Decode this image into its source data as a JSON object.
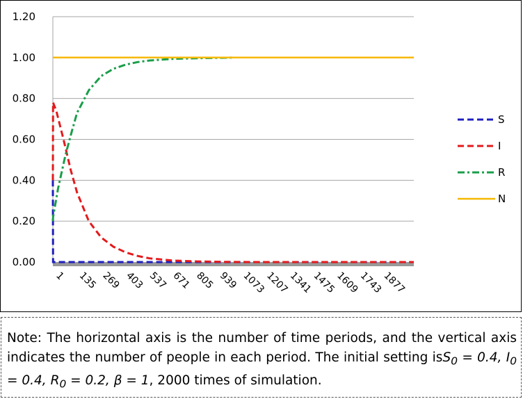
{
  "chart_data": {
    "type": "line",
    "title": "",
    "xlabel": "",
    "ylabel": "",
    "ylim": [
      0,
      1.2
    ],
    "y_ticks": [
      "0.00",
      "0.20",
      "0.40",
      "0.60",
      "0.80",
      "1.00",
      "1.20"
    ],
    "x_ticks": [
      "1",
      "135",
      "269",
      "403",
      "537",
      "671",
      "805",
      "939",
      "1073",
      "1207",
      "1341",
      "1475",
      "1609",
      "1743",
      "1877"
    ],
    "xlim": [
      1,
      2000
    ],
    "grid": "horizontal",
    "legend_position": "right",
    "series": [
      {
        "name": "S",
        "color": "#1f1fbf",
        "dash": "dashed",
        "points": [
          [
            1,
            0.4
          ],
          [
            2,
            0.0
          ],
          [
            2000,
            0.0
          ]
        ]
      },
      {
        "name": "I",
        "color": "#e31a1c",
        "dash": "dashed",
        "points": [
          [
            1,
            0.4
          ],
          [
            2,
            0.78
          ],
          [
            20,
            0.74
          ],
          [
            60,
            0.6
          ],
          [
            100,
            0.45
          ],
          [
            135,
            0.34
          ],
          [
            200,
            0.2
          ],
          [
            269,
            0.12
          ],
          [
            336,
            0.075
          ],
          [
            403,
            0.048
          ],
          [
            470,
            0.03
          ],
          [
            537,
            0.018
          ],
          [
            671,
            0.007
          ],
          [
            805,
            0.003
          ],
          [
            939,
            0.001
          ],
          [
            1100,
            0.0
          ],
          [
            2000,
            0.0
          ]
        ]
      },
      {
        "name": "R",
        "color": "#1a9e4a",
        "dash": "dashdot",
        "points": [
          [
            1,
            0.2
          ],
          [
            2,
            0.22
          ],
          [
            30,
            0.36
          ],
          [
            70,
            0.52
          ],
          [
            100,
            0.62
          ],
          [
            135,
            0.73
          ],
          [
            200,
            0.84
          ],
          [
            269,
            0.91
          ],
          [
            336,
            0.945
          ],
          [
            403,
            0.965
          ],
          [
            470,
            0.978
          ],
          [
            537,
            0.986
          ],
          [
            671,
            0.994
          ],
          [
            805,
            0.997
          ],
          [
            939,
            0.999
          ],
          [
            1000,
            1.0
          ]
        ]
      },
      {
        "name": "N",
        "color": "#f5b800",
        "dash": "solid",
        "points": [
          [
            1,
            1.0
          ],
          [
            2000,
            1.0
          ]
        ]
      }
    ]
  },
  "note": {
    "prefix": "Note: The horizontal axis is the number of time periods, and the vertical axis indicates the number of people in each period. The initial setting is",
    "s0_sym": "S",
    "s0_val": " = 0.4, ",
    "i0_sym": "I",
    "i0_val": " = 0.4, ",
    "r0_sym": "R",
    "r0_val": " = 0.2, ",
    "beta": "β = 1",
    "suffix": ", 2000 times of simulation.",
    "sub": "0"
  }
}
